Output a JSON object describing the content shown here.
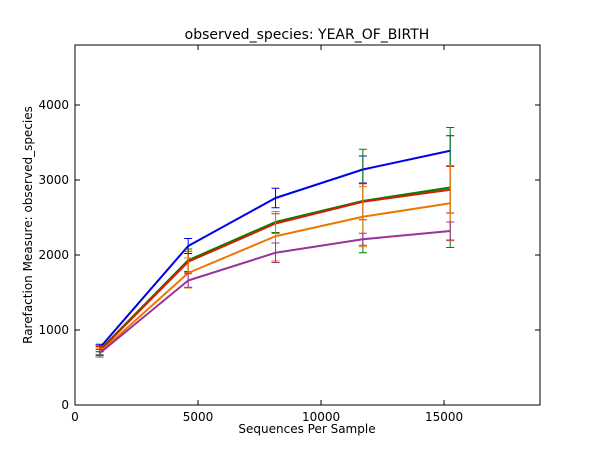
{
  "chart_data": {
    "type": "line",
    "title": "observed_species: YEAR_OF_BIRTH",
    "xlabel": "Sequences Per Sample",
    "ylabel": "Rarefaction Measure: observed_species",
    "xlim": [
      0,
      18900
    ],
    "ylim": [
      0,
      4800
    ],
    "xticks": [
      0,
      5000,
      10000,
      15000
    ],
    "yticks": [
      0,
      1000,
      2000,
      3000,
      4000
    ],
    "grid": false,
    "legend": "none",
    "x": [
      1000,
      4600,
      8150,
      11700,
      15250
    ],
    "series": [
      {
        "color": "#0000ee",
        "values": [
          760,
          2120,
          2760,
          3140,
          3390
        ],
        "errors": [
          50,
          100,
          130,
          180,
          200
        ]
      },
      {
        "color": "#008000",
        "values": [
          730,
          1930,
          2440,
          2720,
          2900
        ],
        "errors": [
          60,
          150,
          140,
          690,
          800
        ]
      },
      {
        "color": "#cc2200",
        "values": [
          720,
          1910,
          2420,
          2710,
          2870
        ],
        "errors": [
          60,
          140,
          130,
          240,
          310
        ]
      },
      {
        "color": "#ee7700",
        "values": [
          700,
          1760,
          2250,
          2510,
          2690
        ],
        "errors": [
          60,
          200,
          330,
          400,
          500
        ]
      },
      {
        "color": "#993399",
        "values": [
          690,
          1660,
          2030,
          2210,
          2320
        ],
        "errors": [
          50,
          90,
          130,
          80,
          120
        ]
      }
    ]
  }
}
